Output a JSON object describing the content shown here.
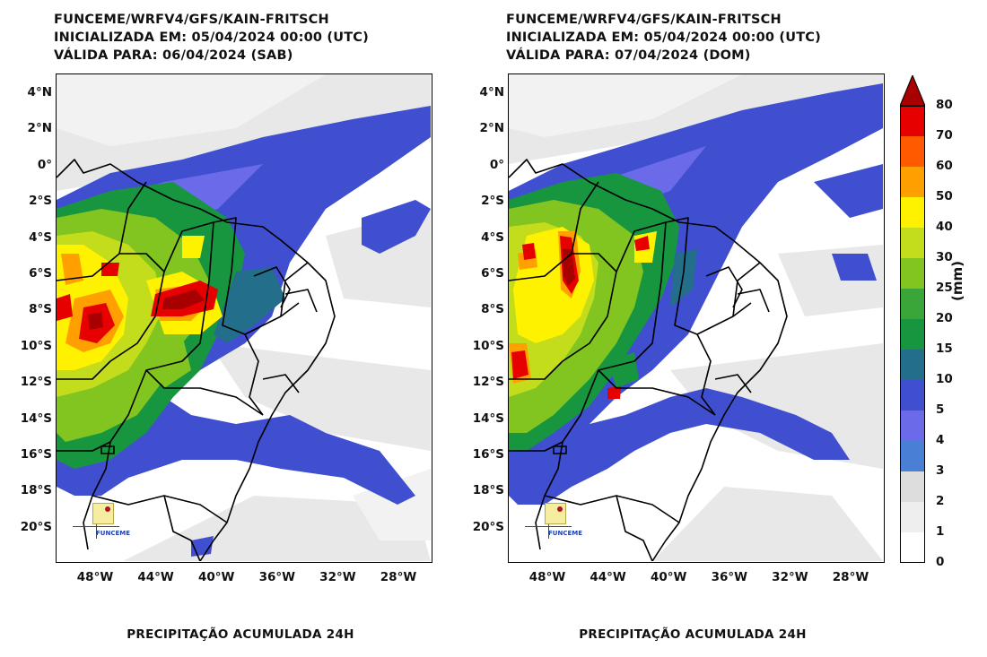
{
  "panels": [
    {
      "title_lines": [
        "FUNCEME/WRFV4/GFS/KAIN-FRITSCH",
        "INICIALIZADA EM: 05/04/2024 00:00 (UTC)",
        "VÁLIDA PARA: 06/04/2024 (SAB)"
      ],
      "footer": "PRECIPITAÇÃO ACUMULADA 24H",
      "logo_text": "FUNCEME"
    },
    {
      "title_lines": [
        "FUNCEME/WRFV4/GFS/KAIN-FRITSCH",
        "INICIALIZADA EM: 05/04/2024 00:00 (UTC)",
        "VÁLIDA PARA: 07/04/2024 (DOM)"
      ],
      "footer": "PRECIPITAÇÃO ACUMULADA 24H",
      "logo_text": "FUNCEME"
    }
  ],
  "axes": {
    "lat_ticks": [
      "4°N",
      "2°N",
      "0°",
      "2°S",
      "4°S",
      "6°S",
      "8°S",
      "10°S",
      "12°S",
      "14°S",
      "16°S",
      "18°S",
      "20°S"
    ],
    "lon_ticks": [
      "48°W",
      "44°W",
      "40°W",
      "36°W",
      "32°W",
      "28°W"
    ]
  },
  "colorbar": {
    "unit": "(mm)",
    "labels": [
      "0",
      "1",
      "2",
      "3",
      "4",
      "5",
      "10",
      "15",
      "20",
      "25",
      "30",
      "40",
      "50",
      "60",
      "70",
      "80"
    ],
    "colors": [
      "#ffffff",
      "#eeeeee",
      "#dddddd",
      "#4a7fd6",
      "#6b6bea",
      "#3f4fd0",
      "#236e8a",
      "#17963f",
      "#3aa63a",
      "#82c420",
      "#c3dc1c",
      "#fff200",
      "#ffa000",
      "#ff5a00",
      "#e60000",
      "#a80000"
    ]
  }
}
